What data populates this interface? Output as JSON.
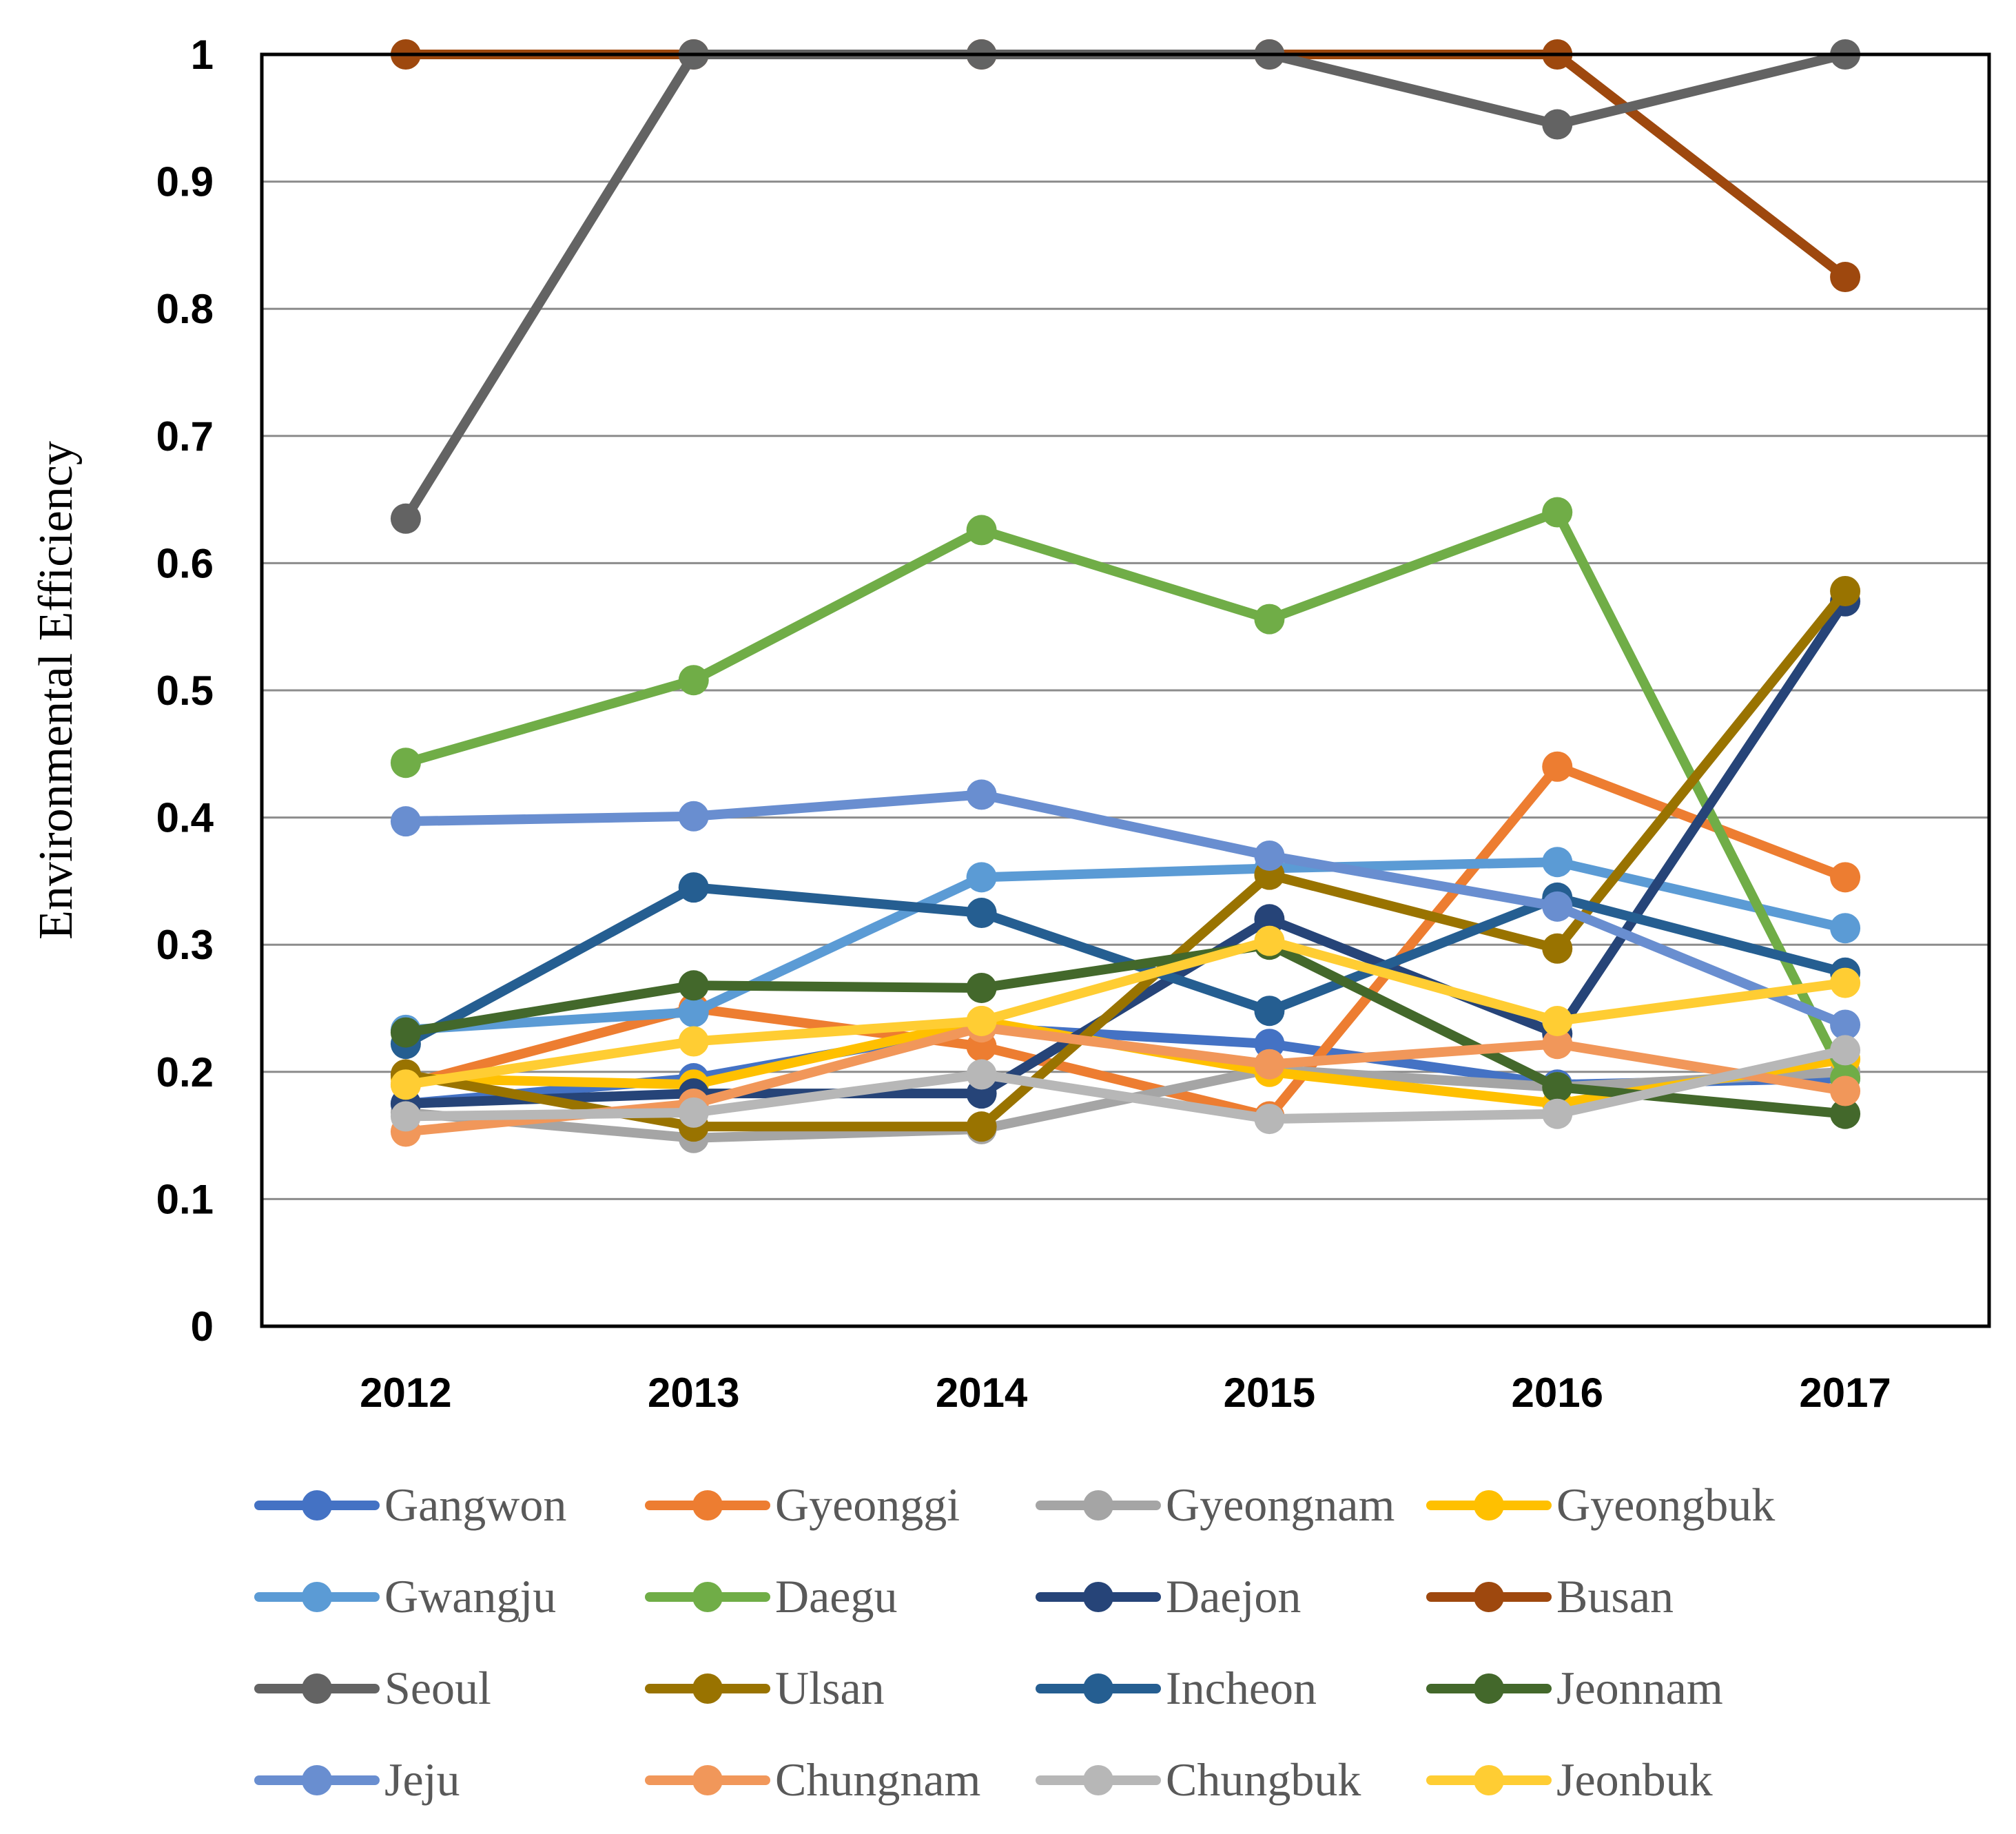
{
  "chart_data": {
    "type": "line",
    "title": "",
    "xlabel": "",
    "ylabel": "Environmental Efficiency",
    "ylim": [
      0,
      1
    ],
    "yticks": [
      "0",
      "0.1",
      "0.2",
      "0.3",
      "0.4",
      "0.5",
      "0.6",
      "0.7",
      "0.8",
      "0.9",
      "1"
    ],
    "categories": [
      "2012",
      "2013",
      "2014",
      "2015",
      "2016",
      "2017"
    ],
    "grid": true,
    "legend_position": "bottom",
    "series": [
      {
        "name": "Gangwon",
        "color": "#4472C4",
        "values": [
          0.175,
          0.195,
          0.235,
          0.222,
          0.19,
          0.195
        ]
      },
      {
        "name": "Gyeonggi",
        "color": "#ED7D31",
        "values": [
          0.19,
          0.25,
          0.22,
          0.165,
          0.44,
          0.353
        ]
      },
      {
        "name": "Gyeongnam",
        "color": "#A5A5A5",
        "values": [
          0.168,
          0.148,
          0.155,
          0.202,
          0.188,
          0.2
        ]
      },
      {
        "name": "Gyeongbuk",
        "color": "#FFC000",
        "values": [
          0.195,
          0.19,
          0.24,
          0.2,
          0.175,
          0.21
        ]
      },
      {
        "name": "Gwangju",
        "color": "#5B9BD5",
        "values": [
          0.233,
          0.247,
          0.353,
          0.36,
          0.365,
          0.313
        ]
      },
      {
        "name": "Daegu",
        "color": "#70AD47",
        "values": [
          0.443,
          0.508,
          0.626,
          0.556,
          0.64,
          0.195
        ]
      },
      {
        "name": "Daejon",
        "color": "#264478",
        "values": [
          0.175,
          0.183,
          0.183,
          0.32,
          0.23,
          0.57
        ]
      },
      {
        "name": "Busan",
        "color": "#9E480E",
        "values": [
          1.0,
          1.0,
          1.0,
          1.0,
          1.0,
          0.825
        ]
      },
      {
        "name": "Seoul",
        "color": "#636363",
        "values": [
          0.635,
          1.0,
          1.0,
          1.0,
          0.945,
          1.0
        ]
      },
      {
        "name": "Ulsan",
        "color": "#997300",
        "values": [
          0.198,
          0.157,
          0.157,
          0.355,
          0.297,
          0.578
        ]
      },
      {
        "name": "Incheon",
        "color": "#255E91",
        "values": [
          0.222,
          0.345,
          0.325,
          0.248,
          0.337,
          0.278
        ]
      },
      {
        "name": "Jeonnam",
        "color": "#43682B",
        "values": [
          0.231,
          0.268,
          0.266,
          0.3,
          0.188,
          0.167
        ]
      },
      {
        "name": "Jeju",
        "color": "#698ED0",
        "values": [
          0.397,
          0.401,
          0.418,
          0.37,
          0.33,
          0.237
        ]
      },
      {
        "name": "Chungnam",
        "color": "#F1975A",
        "values": [
          0.153,
          0.175,
          0.235,
          0.206,
          0.222,
          0.185
        ]
      },
      {
        "name": "Chungbuk",
        "color": "#B7B7B7",
        "values": [
          0.165,
          0.168,
          0.198,
          0.163,
          0.167,
          0.217
        ]
      },
      {
        "name": "Jeonbuk",
        "color": "#FFCD33",
        "values": [
          0.19,
          0.224,
          0.24,
          0.303,
          0.24,
          0.27
        ]
      }
    ]
  }
}
